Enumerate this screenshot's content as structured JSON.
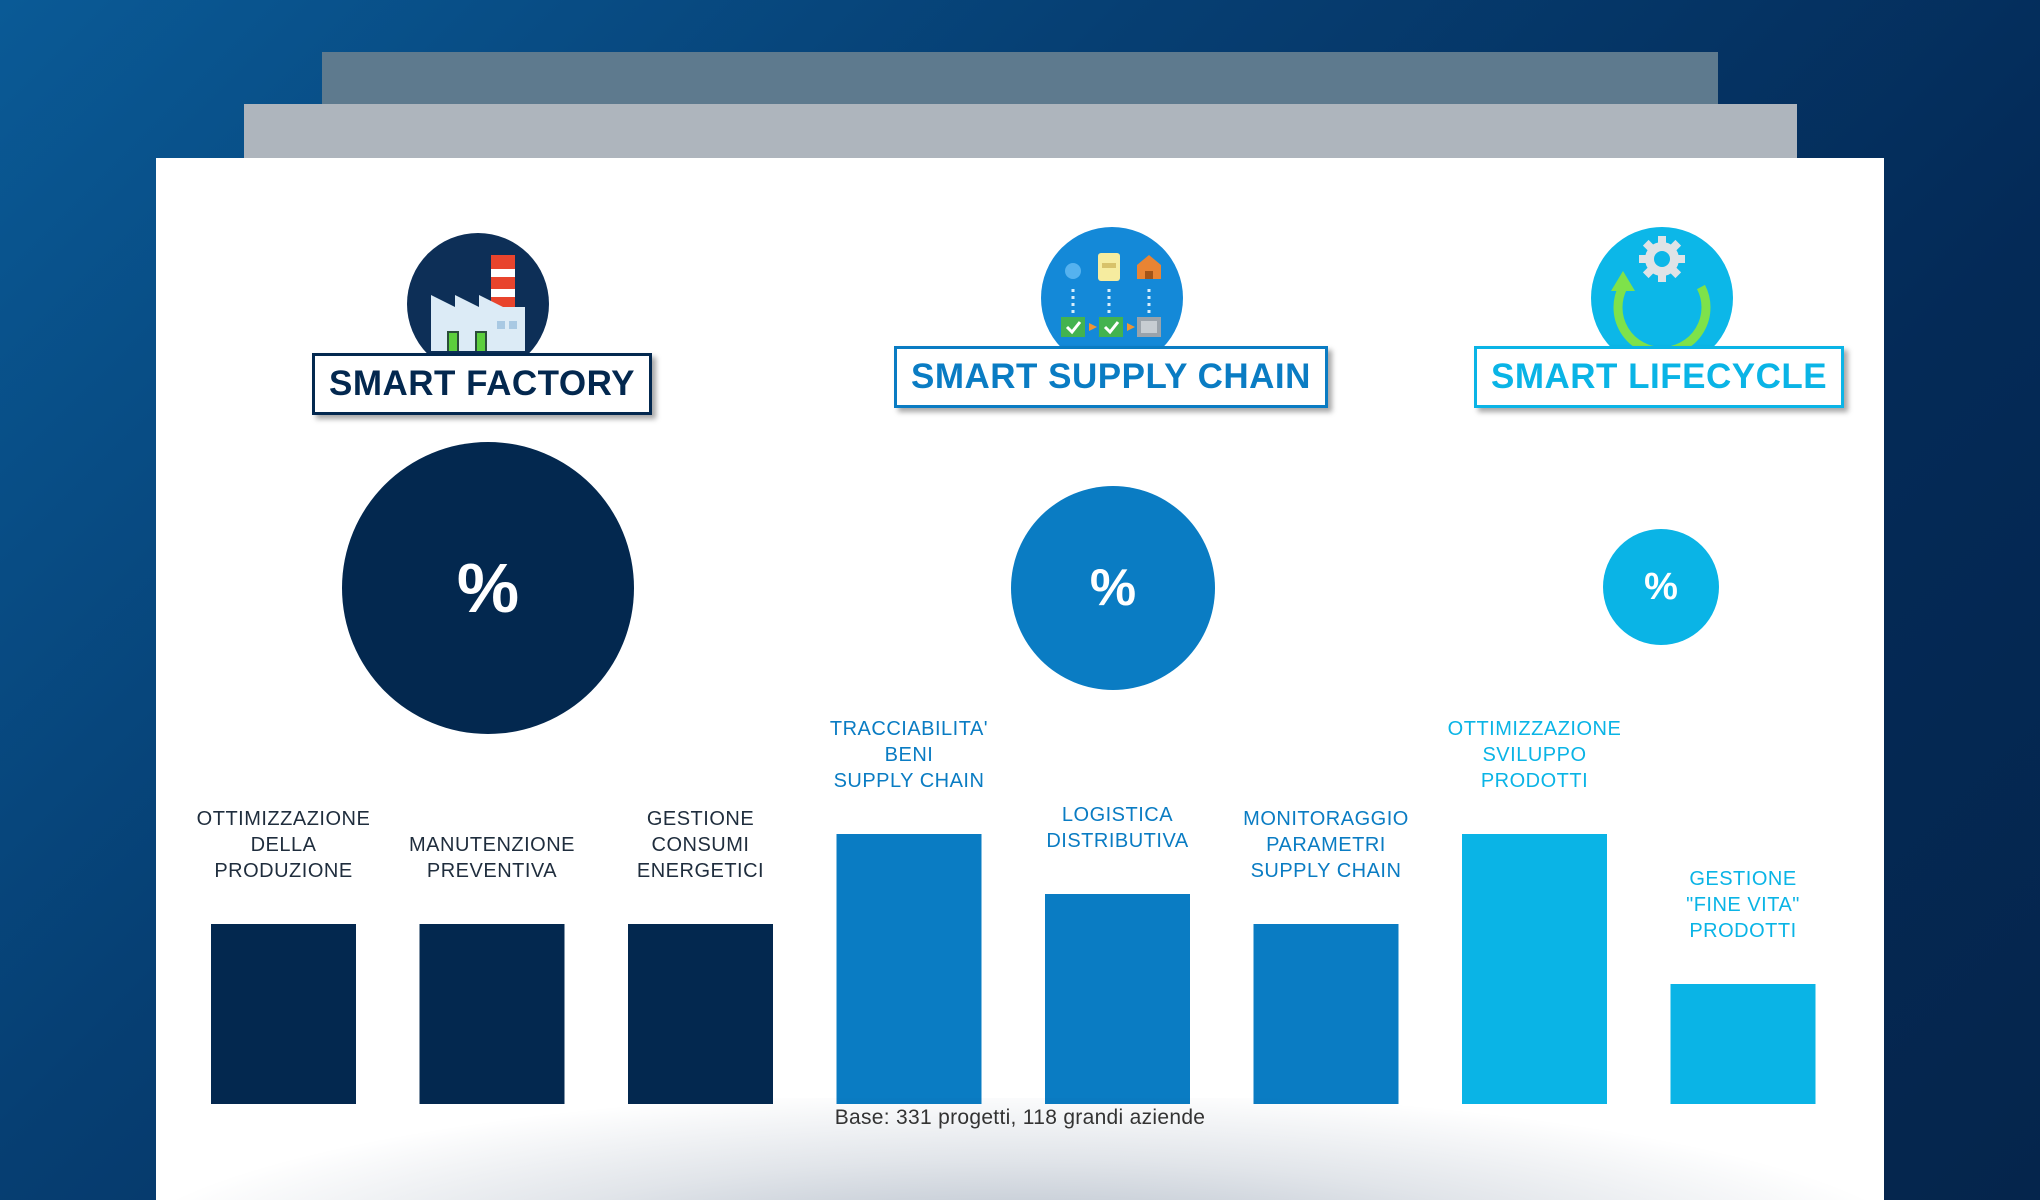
{
  "chart_data": {
    "type": "bar",
    "groups": [
      {
        "name": "SMART FACTORY",
        "color": "#03284f",
        "bubble_label": "%",
        "categories": [
          "OTTIMIZZAZIONE\nDELLA\nPRODUZIONE",
          "MANUTENZIONE\nPREVENTIVA",
          "GESTIONE\nCONSUMI\nENERGETICI"
        ],
        "values": [
          30,
          30,
          30
        ]
      },
      {
        "name": "SMART SUPPLY CHAIN",
        "color": "#0a7cc3",
        "bubble_label": "%",
        "categories": [
          "TRACCIABILITA'\nBENI\nSUPPLY CHAIN",
          "LOGISTICA\nDISTRIBUTIVA",
          "MONITORAGGIO\nPARAMETRI\nSUPPLY CHAIN"
        ],
        "values": [
          45,
          35,
          30
        ]
      },
      {
        "name": "SMART LIFECYCLE",
        "color": "#0ab4e6",
        "bubble_label": "%",
        "categories": [
          "OTTIMIZZAZIONE\nSVILUPPO\nPRODOTTI",
          "GESTIONE\n\"FINE VITA\"\nPRODOTTI"
        ],
        "values": [
          45,
          20
        ]
      }
    ],
    "bubble_sizes": [
      100,
      70,
      40
    ],
    "ylim": [
      0,
      50
    ],
    "footnote": "Base: 331 progetti, 118 grandi aziende"
  }
}
